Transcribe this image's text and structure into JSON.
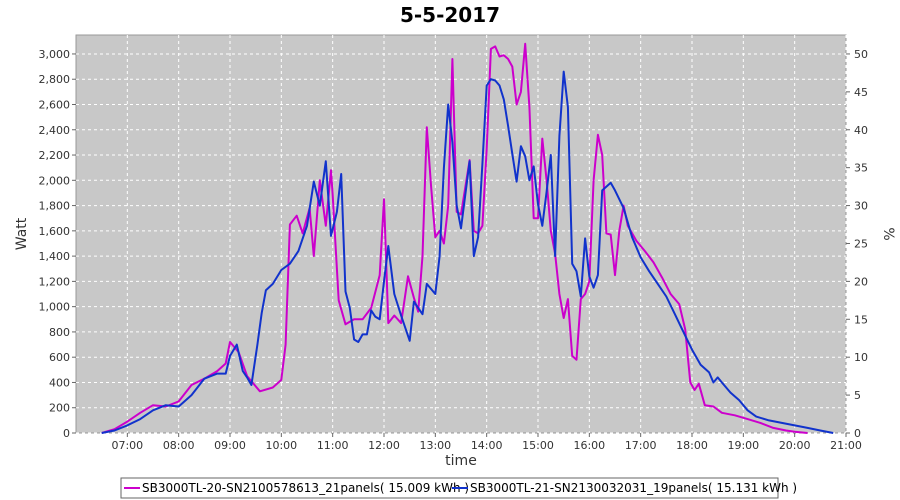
{
  "chart_data": {
    "type": "line",
    "title": "5-5-2017",
    "xlabel": "time",
    "ylabel": "Watt",
    "y2label": "%",
    "xlim_hours": [
      6.0,
      21.0
    ],
    "ylim": [
      0,
      3150
    ],
    "y2lim": [
      0,
      52.5
    ],
    "x_ticks": [
      "07:00",
      "08:00",
      "09:00",
      "10:00",
      "11:00",
      "12:00",
      "13:00",
      "14:00",
      "15:00",
      "16:00",
      "17:00",
      "18:00",
      "19:00",
      "20:00",
      "21:00"
    ],
    "y_ticks": [
      "0",
      "200",
      "400",
      "600",
      "800",
      "1,000",
      "1,200",
      "1,400",
      "1,600",
      "1,800",
      "2,000",
      "2,200",
      "2,400",
      "2,600",
      "2,800",
      "3,000"
    ],
    "y2_ticks": [
      "0",
      "5",
      "10",
      "15",
      "20",
      "25",
      "30",
      "35",
      "40",
      "45",
      "50"
    ],
    "grid": true,
    "legend_position": "bottom",
    "series": [
      {
        "name": "SB3000TL-20-SN2100578613_21panels( 15.009 kWh )",
        "color": "#cc00cc",
        "points": [
          [
            "06:30",
            0
          ],
          [
            "06:45",
            30
          ],
          [
            "07:00",
            90
          ],
          [
            "07:15",
            160
          ],
          [
            "07:30",
            220
          ],
          [
            "07:45",
            210
          ],
          [
            "08:00",
            250
          ],
          [
            "08:15",
            380
          ],
          [
            "08:30",
            430
          ],
          [
            "08:45",
            490
          ],
          [
            "08:55",
            550
          ],
          [
            "09:00",
            720
          ],
          [
            "09:10",
            640
          ],
          [
            "09:20",
            450
          ],
          [
            "09:35",
            330
          ],
          [
            "09:50",
            360
          ],
          [
            "10:00",
            420
          ],
          [
            "10:05",
            700
          ],
          [
            "10:10",
            1650
          ],
          [
            "10:18",
            1720
          ],
          [
            "10:25",
            1580
          ],
          [
            "10:33",
            1780
          ],
          [
            "10:38",
            1400
          ],
          [
            "10:45",
            2000
          ],
          [
            "10:52",
            1640
          ],
          [
            "10:58",
            2080
          ],
          [
            "11:00",
            1880
          ],
          [
            "11:07",
            1050
          ],
          [
            "11:15",
            860
          ],
          [
            "11:25",
            900
          ],
          [
            "11:35",
            900
          ],
          [
            "11:45",
            990
          ],
          [
            "11:55",
            1250
          ],
          [
            "12:00",
            1850
          ],
          [
            "12:05",
            870
          ],
          [
            "12:12",
            930
          ],
          [
            "12:20",
            870
          ],
          [
            "12:28",
            1240
          ],
          [
            "12:35",
            1070
          ],
          [
            "12:40",
            960
          ],
          [
            "12:45",
            1400
          ],
          [
            "12:50",
            2420
          ],
          [
            "12:55",
            1950
          ],
          [
            "13:00",
            1550
          ],
          [
            "13:05",
            1600
          ],
          [
            "13:10",
            1500
          ],
          [
            "13:15",
            1800
          ],
          [
            "13:20",
            2960
          ],
          [
            "13:25",
            1750
          ],
          [
            "13:30",
            1730
          ],
          [
            "13:40",
            2160
          ],
          [
            "13:45",
            1600
          ],
          [
            "13:50",
            1580
          ],
          [
            "13:55",
            1640
          ],
          [
            "14:00",
            2250
          ],
          [
            "14:05",
            3040
          ],
          [
            "14:10",
            3060
          ],
          [
            "14:15",
            2980
          ],
          [
            "14:20",
            2990
          ],
          [
            "14:25",
            2960
          ],
          [
            "14:30",
            2900
          ],
          [
            "14:35",
            2600
          ],
          [
            "14:40",
            2700
          ],
          [
            "14:45",
            3080
          ],
          [
            "14:50",
            2580
          ],
          [
            "14:55",
            1700
          ],
          [
            "15:00",
            1700
          ],
          [
            "15:05",
            2330
          ],
          [
            "15:10",
            2000
          ],
          [
            "15:15",
            1600
          ],
          [
            "15:20",
            1420
          ],
          [
            "15:25",
            1100
          ],
          [
            "15:30",
            910
          ],
          [
            "15:35",
            1060
          ],
          [
            "15:40",
            610
          ],
          [
            "15:45",
            580
          ],
          [
            "15:50",
            1060
          ],
          [
            "15:55",
            1100
          ],
          [
            "16:00",
            1200
          ],
          [
            "16:05",
            2000
          ],
          [
            "16:10",
            2360
          ],
          [
            "16:15",
            2200
          ],
          [
            "16:20",
            1580
          ],
          [
            "16:25",
            1570
          ],
          [
            "16:30",
            1250
          ],
          [
            "16:35",
            1600
          ],
          [
            "16:40",
            1800
          ],
          [
            "16:45",
            1640
          ],
          [
            "16:55",
            1520
          ],
          [
            "17:05",
            1440
          ],
          [
            "17:15",
            1350
          ],
          [
            "17:25",
            1230
          ],
          [
            "17:35",
            1100
          ],
          [
            "17:45",
            1020
          ],
          [
            "17:52",
            820
          ],
          [
            "17:58",
            400
          ],
          [
            "18:03",
            340
          ],
          [
            "18:08",
            390
          ],
          [
            "18:15",
            220
          ],
          [
            "18:25",
            210
          ],
          [
            "18:35",
            160
          ],
          [
            "18:50",
            140
          ],
          [
            "19:05",
            110
          ],
          [
            "19:20",
            80
          ],
          [
            "19:35",
            40
          ],
          [
            "19:50",
            20
          ],
          [
            "20:00",
            10
          ],
          [
            "20:15",
            0
          ]
        ]
      },
      {
        "name": "SB3000TL-21-SN2130032031_19panels( 15.131 kWh )",
        "color": "#1133cc",
        "points": [
          [
            "06:30",
            0
          ],
          [
            "06:45",
            20
          ],
          [
            "07:00",
            60
          ],
          [
            "07:15",
            110
          ],
          [
            "07:30",
            180
          ],
          [
            "07:45",
            220
          ],
          [
            "08:00",
            210
          ],
          [
            "08:15",
            300
          ],
          [
            "08:30",
            430
          ],
          [
            "08:45",
            470
          ],
          [
            "08:55",
            470
          ],
          [
            "09:00",
            610
          ],
          [
            "09:08",
            700
          ],
          [
            "09:15",
            490
          ],
          [
            "09:20",
            440
          ],
          [
            "09:25",
            380
          ],
          [
            "09:32",
            700
          ],
          [
            "09:37",
            950
          ],
          [
            "09:42",
            1130
          ],
          [
            "09:50",
            1180
          ],
          [
            "10:00",
            1290
          ],
          [
            "10:10",
            1340
          ],
          [
            "10:20",
            1440
          ],
          [
            "10:30",
            1640
          ],
          [
            "10:38",
            1990
          ],
          [
            "10:45",
            1800
          ],
          [
            "10:52",
            2150
          ],
          [
            "10:58",
            1560
          ],
          [
            "11:05",
            1750
          ],
          [
            "11:10",
            2050
          ],
          [
            "11:15",
            1120
          ],
          [
            "11:20",
            990
          ],
          [
            "11:25",
            740
          ],
          [
            "11:30",
            720
          ],
          [
            "11:35",
            780
          ],
          [
            "11:40",
            780
          ],
          [
            "11:45",
            970
          ],
          [
            "11:50",
            920
          ],
          [
            "11:55",
            900
          ],
          [
            "12:00",
            1200
          ],
          [
            "12:05",
            1480
          ],
          [
            "12:12",
            1100
          ],
          [
            "12:20",
            930
          ],
          [
            "12:30",
            730
          ],
          [
            "12:35",
            1040
          ],
          [
            "12:40",
            990
          ],
          [
            "12:45",
            940
          ],
          [
            "12:50",
            1180
          ],
          [
            "13:00",
            1100
          ],
          [
            "13:05",
            1400
          ],
          [
            "13:10",
            2100
          ],
          [
            "13:15",
            2600
          ],
          [
            "13:20",
            2300
          ],
          [
            "13:25",
            1800
          ],
          [
            "13:30",
            1620
          ],
          [
            "13:40",
            2150
          ],
          [
            "13:45",
            1400
          ],
          [
            "13:50",
            1550
          ],
          [
            "13:55",
            2130
          ],
          [
            "14:00",
            2750
          ],
          [
            "14:05",
            2800
          ],
          [
            "14:10",
            2790
          ],
          [
            "14:15",
            2750
          ],
          [
            "14:20",
            2640
          ],
          [
            "14:25",
            2430
          ],
          [
            "14:30",
            2210
          ],
          [
            "14:35",
            1990
          ],
          [
            "14:40",
            2270
          ],
          [
            "14:45",
            2190
          ],
          [
            "14:50",
            2000
          ],
          [
            "14:55",
            2110
          ],
          [
            "15:00",
            1810
          ],
          [
            "15:05",
            1640
          ],
          [
            "15:10",
            1910
          ],
          [
            "15:15",
            2200
          ],
          [
            "15:20",
            1400
          ],
          [
            "15:25",
            2350
          ],
          [
            "15:30",
            2860
          ],
          [
            "15:35",
            2580
          ],
          [
            "15:40",
            1340
          ],
          [
            "15:45",
            1280
          ],
          [
            "15:50",
            1080
          ],
          [
            "15:55",
            1540
          ],
          [
            "16:00",
            1240
          ],
          [
            "16:05",
            1150
          ],
          [
            "16:10",
            1250
          ],
          [
            "16:15",
            1920
          ],
          [
            "16:20",
            1950
          ],
          [
            "16:25",
            1980
          ],
          [
            "16:30",
            1920
          ],
          [
            "16:40",
            1780
          ],
          [
            "16:50",
            1550
          ],
          [
            "17:00",
            1390
          ],
          [
            "17:10",
            1280
          ],
          [
            "17:20",
            1180
          ],
          [
            "17:30",
            1080
          ],
          [
            "17:40",
            940
          ],
          [
            "17:50",
            800
          ],
          [
            "18:00",
            660
          ],
          [
            "18:10",
            540
          ],
          [
            "18:20",
            480
          ],
          [
            "18:25",
            400
          ],
          [
            "18:30",
            440
          ],
          [
            "18:35",
            400
          ],
          [
            "18:45",
            320
          ],
          [
            "18:55",
            260
          ],
          [
            "19:05",
            180
          ],
          [
            "19:15",
            130
          ],
          [
            "19:30",
            100
          ],
          [
            "19:45",
            80
          ],
          [
            "20:00",
            60
          ],
          [
            "20:15",
            40
          ],
          [
            "20:30",
            20
          ],
          [
            "20:45",
            0
          ]
        ]
      }
    ]
  }
}
